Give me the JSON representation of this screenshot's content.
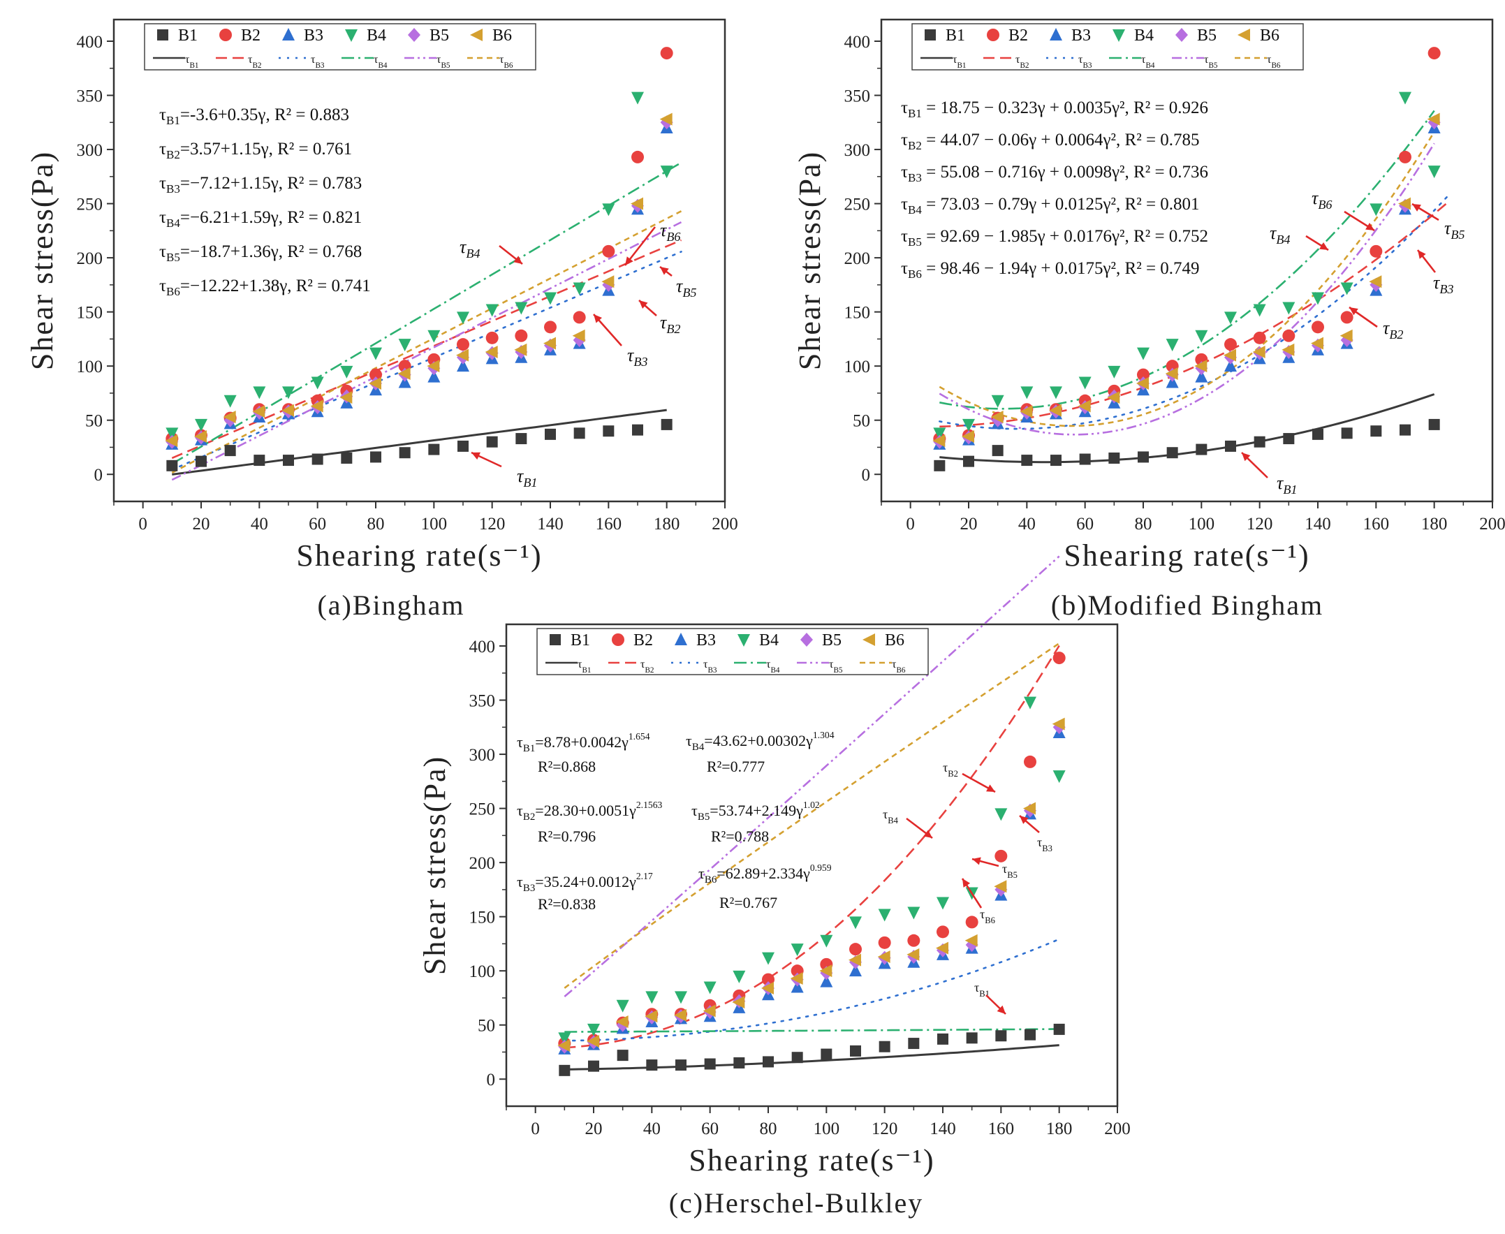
{
  "colors": {
    "B1": "#3a3a3a",
    "B2": "#e8413f",
    "B3": "#2e6fd0",
    "B4": "#2bb070",
    "B5": "#b76fe0",
    "B6": "#d4a030",
    "arrow": "#e02828",
    "frame": "#333333"
  },
  "chart_data": [
    {
      "type": "scatter",
      "panel_id": "a",
      "caption": "(a)Bingham",
      "xlabel": "Shearing rate(s⁻¹)",
      "ylabel": "Shear stress(Pa)",
      "xlim": [
        -10,
        200
      ],
      "ylim": [
        -25,
        420
      ],
      "xticks": [
        0,
        20,
        40,
        60,
        80,
        100,
        120,
        140,
        160,
        180,
        200
      ],
      "yticks": [
        0,
        50,
        100,
        150,
        200,
        250,
        300,
        350,
        400
      ],
      "legend_position": "top",
      "legend_markers": [
        "B1",
        "B2",
        "B3",
        "B4",
        "B5",
        "B6"
      ],
      "legend_fits": [
        "τB1",
        "τB2",
        "τB3",
        "τB4",
        "τB5",
        "τB6"
      ],
      "x": [
        10,
        20,
        30,
        40,
        50,
        60,
        70,
        80,
        90,
        100,
        110,
        120,
        130,
        140,
        150,
        160,
        170,
        180
      ],
      "series": [
        {
          "name": "B1",
          "marker": "square",
          "values": [
            8,
            12,
            22,
            13,
            13,
            14,
            15,
            16,
            20,
            23,
            26,
            30,
            33,
            37,
            38,
            40,
            41,
            46
          ]
        },
        {
          "name": "B2",
          "marker": "circle",
          "values": [
            33,
            36,
            52,
            60,
            60,
            68,
            77,
            92,
            100,
            106,
            120,
            126,
            128,
            136,
            145,
            206,
            293,
            389
          ]
        },
        {
          "name": "B3",
          "marker": "triangle-up",
          "values": [
            28,
            32,
            47,
            53,
            56,
            58,
            66,
            78,
            85,
            90,
            100,
            107,
            108,
            115,
            121,
            170,
            245,
            320
          ]
        },
        {
          "name": "B4",
          "marker": "triangle-down",
          "values": [
            38,
            46,
            68,
            76,
            76,
            85,
            95,
            112,
            120,
            128,
            145,
            152,
            154,
            163,
            172,
            245,
            348,
            280
          ]
        },
        {
          "name": "B5",
          "marker": "diamond",
          "values": [
            30,
            34,
            50,
            57,
            58,
            62,
            72,
            84,
            92,
            98,
            108,
            112,
            113,
            119,
            124,
            175,
            248,
            325
          ]
        },
        {
          "name": "B6",
          "marker": "triangle-left",
          "values": [
            31,
            35,
            53,
            58,
            59,
            63,
            71,
            84,
            93,
            100,
            110,
            113,
            115,
            121,
            128,
            178,
            250,
            328
          ]
        }
      ],
      "fits": [
        {
          "name": "τB1",
          "series": "B1",
          "model": "linear",
          "c": -3.6,
          "k": 0.35,
          "xrange": [
            10,
            180
          ],
          "label": "τB1",
          "equation": "τB1=-3.6+0.35γ, R² = 0.883"
        },
        {
          "name": "τB2",
          "series": "B2",
          "model": "linear",
          "c": 3.57,
          "k": 1.15,
          "xrange": [
            10,
            185
          ],
          "label": "τB2",
          "equation": "τB2=3.57+1.15γ, R² = 0.761"
        },
        {
          "name": "τB3",
          "series": "B3",
          "model": "linear",
          "c": -7.12,
          "k": 1.15,
          "xrange": [
            10,
            185
          ],
          "label": "τB3",
          "equation": "τB3=−7.12+1.15γ, R² = 0.783"
        },
        {
          "name": "τB4",
          "series": "B4",
          "model": "linear",
          "c": -6.21,
          "k": 1.59,
          "xrange": [
            10,
            185
          ],
          "label": "τB4",
          "equation": "τB4=−6.21+1.59γ, R² = 0.821"
        },
        {
          "name": "τB5",
          "series": "B5",
          "model": "linear",
          "c": -18.7,
          "k": 1.36,
          "xrange": [
            10,
            185
          ],
          "label": "τB5",
          "equation": "τB5=−18.7+1.36γ, R² = 0.768"
        },
        {
          "name": "τB6",
          "series": "B6",
          "model": "linear",
          "c": -12.22,
          "k": 1.38,
          "xrange": [
            10,
            185
          ],
          "label": "τB6",
          "equation": "τB6=−12.22+1.38γ, R² = 0.741"
        }
      ]
    },
    {
      "type": "scatter",
      "panel_id": "b",
      "caption": "(b)Modified Bingham",
      "xlabel": "Shearing rate(s⁻¹)",
      "ylabel": "Shear stress(Pa)",
      "xlim": [
        -10,
        200
      ],
      "ylim": [
        -25,
        420
      ],
      "xticks": [
        0,
        20,
        40,
        60,
        80,
        100,
        120,
        140,
        160,
        180,
        200
      ],
      "yticks": [
        0,
        50,
        100,
        150,
        200,
        250,
        300,
        350,
        400
      ],
      "legend_position": "top",
      "legend_markers": [
        "B1",
        "B2",
        "B3",
        "B4",
        "B5",
        "B6"
      ],
      "legend_fits": [
        "τB1",
        "τB2",
        "τB3",
        "τB4",
        "τB5",
        "τB6"
      ],
      "x": [
        10,
        20,
        30,
        40,
        50,
        60,
        70,
        80,
        90,
        100,
        110,
        120,
        130,
        140,
        150,
        160,
        170,
        180
      ],
      "series": [
        {
          "name": "B1",
          "marker": "square",
          "values": [
            8,
            12,
            22,
            13,
            13,
            14,
            15,
            16,
            20,
            23,
            26,
            30,
            33,
            37,
            38,
            40,
            41,
            46
          ]
        },
        {
          "name": "B2",
          "marker": "circle",
          "values": [
            33,
            36,
            52,
            60,
            60,
            68,
            77,
            92,
            100,
            106,
            120,
            126,
            128,
            136,
            145,
            206,
            293,
            389
          ]
        },
        {
          "name": "B3",
          "marker": "triangle-up",
          "values": [
            28,
            32,
            47,
            53,
            56,
            58,
            66,
            78,
            85,
            90,
            100,
            107,
            108,
            115,
            121,
            170,
            245,
            320
          ]
        },
        {
          "name": "B4",
          "marker": "triangle-down",
          "values": [
            38,
            46,
            68,
            76,
            76,
            85,
            95,
            112,
            120,
            128,
            145,
            152,
            154,
            163,
            172,
            245,
            348,
            280
          ]
        },
        {
          "name": "B5",
          "marker": "diamond",
          "values": [
            30,
            34,
            50,
            57,
            58,
            62,
            72,
            84,
            92,
            98,
            108,
            112,
            113,
            119,
            124,
            175,
            248,
            325
          ]
        },
        {
          "name": "B6",
          "marker": "triangle-left",
          "values": [
            31,
            35,
            53,
            58,
            59,
            63,
            71,
            84,
            93,
            100,
            110,
            113,
            115,
            121,
            128,
            178,
            250,
            328
          ]
        }
      ],
      "fits": [
        {
          "name": "τB1",
          "series": "B1",
          "model": "quadratic",
          "c": 18.75,
          "b": -0.323,
          "a": 0.0035,
          "xrange": [
            10,
            180
          ],
          "label": "τB1",
          "equation": "τB1 = 18.75 − 0.323γ + 0.0035γ², R² = 0.926"
        },
        {
          "name": "τB2",
          "series": "B2",
          "model": "quadratic",
          "c": 44.07,
          "b": -0.06,
          "a": 0.0064,
          "xrange": [
            10,
            185
          ],
          "label": "τB2",
          "equation": "τB2 = 44.07 − 0.06γ + 0.0064γ², R² = 0.785"
        },
        {
          "name": "τB3",
          "series": "B3",
          "model": "quadratic",
          "c": 55.08,
          "b": -0.716,
          "a": 0.0098,
          "xrange": [
            10,
            185
          ],
          "label": "τB3",
          "equation": "τB3 = 55.08 − 0.716γ + 0.0098γ², R² = 0.736"
        },
        {
          "name": "τB4",
          "series": "B4",
          "model": "quadratic",
          "c": 73.03,
          "b": -0.79,
          "a": 0.0125,
          "xrange": [
            10,
            180
          ],
          "label": "τB4",
          "equation": "τB4 = 73.03 − 0.79γ + 0.0125γ², R² = 0.801"
        },
        {
          "name": "τB5",
          "series": "B5",
          "model": "quadratic",
          "c": 92.69,
          "b": -1.985,
          "a": 0.0176,
          "xrange": [
            10,
            180
          ],
          "label": "τB5",
          "equation": "τB5 = 92.69 − 1.985γ + 0.0176γ², R² = 0.752"
        },
        {
          "name": "τB6",
          "series": "B6",
          "model": "quadratic",
          "c": 98.46,
          "b": -1.94,
          "a": 0.0175,
          "xrange": [
            10,
            180
          ],
          "label": "τB6",
          "equation": "τB6 = 98.46 − 1.94γ + 0.0175γ², R² = 0.749"
        }
      ]
    },
    {
      "type": "scatter",
      "panel_id": "c",
      "caption": "(c)Herschel-Bulkley",
      "xlabel": "Shearing rate(s⁻¹)",
      "ylabel": "Shear stress(Pa)",
      "xlim": [
        -10,
        200
      ],
      "ylim": [
        -25,
        420
      ],
      "xticks": [
        0,
        20,
        40,
        60,
        80,
        100,
        120,
        140,
        160,
        180,
        200
      ],
      "yticks": [
        0,
        50,
        100,
        150,
        200,
        250,
        300,
        350,
        400
      ],
      "legend_position": "top",
      "legend_markers": [
        "B1",
        "B2",
        "B3",
        "B4",
        "B5",
        "B6"
      ],
      "legend_fits": [
        "τB1",
        "τB2",
        "τB3",
        "τB4",
        "τB5",
        "τB6"
      ],
      "x": [
        10,
        20,
        30,
        40,
        50,
        60,
        70,
        80,
        90,
        100,
        110,
        120,
        130,
        140,
        150,
        160,
        170,
        180
      ],
      "series": [
        {
          "name": "B1",
          "marker": "square",
          "values": [
            8,
            12,
            22,
            13,
            13,
            14,
            15,
            16,
            20,
            23,
            26,
            30,
            33,
            37,
            38,
            40,
            41,
            46
          ]
        },
        {
          "name": "B2",
          "marker": "circle",
          "values": [
            33,
            36,
            52,
            60,
            60,
            68,
            77,
            92,
            100,
            106,
            120,
            126,
            128,
            136,
            145,
            206,
            293,
            389
          ]
        },
        {
          "name": "B3",
          "marker": "triangle-up",
          "values": [
            28,
            32,
            47,
            53,
            56,
            58,
            66,
            78,
            85,
            90,
            100,
            107,
            108,
            115,
            121,
            170,
            245,
            320
          ]
        },
        {
          "name": "B4",
          "marker": "triangle-down",
          "values": [
            38,
            46,
            68,
            76,
            76,
            85,
            95,
            112,
            120,
            128,
            145,
            152,
            154,
            163,
            172,
            245,
            348,
            280
          ]
        },
        {
          "name": "B5",
          "marker": "diamond",
          "values": [
            30,
            34,
            50,
            57,
            58,
            62,
            72,
            84,
            92,
            98,
            108,
            112,
            113,
            119,
            124,
            175,
            248,
            325
          ]
        },
        {
          "name": "B6",
          "marker": "triangle-left",
          "values": [
            31,
            35,
            53,
            58,
            59,
            63,
            71,
            84,
            93,
            100,
            110,
            113,
            115,
            121,
            128,
            178,
            250,
            328
          ]
        }
      ],
      "fits": [
        {
          "name": "τB1",
          "series": "B1",
          "model": "power",
          "c": 8.78,
          "k": 0.0042,
          "n": 1.654,
          "xrange": [
            10,
            180
          ],
          "label": "τB1",
          "equation": "τB1=8.78+0.0042γ^1.654",
          "r2": "R²=0.868"
        },
        {
          "name": "τB2",
          "series": "B2",
          "model": "power",
          "c": 28.3,
          "k": 0.0051,
          "n": 2.1563,
          "xrange": [
            10,
            180
          ],
          "label": "τB2",
          "equation": "τB2=28.30+0.0051γ^2.1563",
          "r2": "R²=0.796"
        },
        {
          "name": "τB3",
          "series": "B3",
          "model": "power",
          "c": 35.24,
          "k": 0.0012,
          "n": 2.17,
          "xrange": [
            10,
            180
          ],
          "label": "τB3",
          "equation": "τB3=35.24+0.0012γ^2.17",
          "r2": "R²=0.838"
        },
        {
          "name": "τB4",
          "series": "B4",
          "model": "power",
          "c": 43.62,
          "k": 0.00302,
          "n": 1.304,
          "xrange": [
            10,
            180
          ],
          "label": "τB4",
          "equation": "τB4=43.62+0.00302γ^1.304",
          "r2": "R²=0.777"
        },
        {
          "name": "τB5",
          "series": "B5",
          "model": "power",
          "c": 53.74,
          "k": 2.149,
          "n": 1.02,
          "xrange": [
            10,
            180
          ],
          "label": "τB5",
          "equation": "τB5=53.74+2.149γ^1.02",
          "r2": "R²=0.788"
        },
        {
          "name": "τB6",
          "series": "B6",
          "model": "power",
          "c": 62.89,
          "k": 2.334,
          "n": 0.959,
          "xrange": [
            10,
            180
          ],
          "label": "τB6",
          "equation": "τB6=62.89+2.334γ^0.959",
          "r2": "R²=0.767"
        }
      ]
    }
  ]
}
